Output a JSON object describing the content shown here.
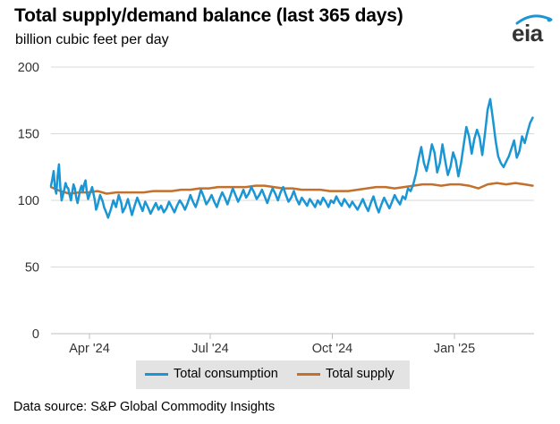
{
  "header": {
    "title": "Total supply/demand balance (last 365 days)",
    "subtitle": "billion cubic feet per day",
    "logo_text": "eia"
  },
  "footer": {
    "source": "Data source: S&P Global Commodity Insights"
  },
  "colors": {
    "consumption": "#1a96d4",
    "supply": "#c2702c",
    "grid": "#d9d9d9",
    "legend_bg": "#e3e3e3"
  },
  "chart_data": {
    "type": "line",
    "title": "Total supply/demand balance (last 365 days)",
    "ylabel": "billion cubic feet per day",
    "xlabel": "",
    "ylim": [
      0,
      200
    ],
    "yticks": [
      0,
      50,
      100,
      150,
      200
    ],
    "xlim": [
      "2024-03-03",
      "2025-03-02"
    ],
    "xticks": [
      {
        "date": "2024-04-01",
        "label": "Apr '24"
      },
      {
        "date": "2024-07-01",
        "label": "Jul '24"
      },
      {
        "date": "2024-10-01",
        "label": "Oct '24"
      },
      {
        "date": "2025-01-01",
        "label": "Jan '25"
      }
    ],
    "grid": true,
    "legend_position": "bottom",
    "series": [
      {
        "name": "Total consumption",
        "points": [
          [
            "2024-03-03",
            111
          ],
          [
            "2024-03-04",
            116
          ],
          [
            "2024-03-05",
            122
          ],
          [
            "2024-03-06",
            109
          ],
          [
            "2024-03-07",
            105
          ],
          [
            "2024-03-08",
            118
          ],
          [
            "2024-03-09",
            127
          ],
          [
            "2024-03-10",
            110
          ],
          [
            "2024-03-11",
            100
          ],
          [
            "2024-03-12",
            104
          ],
          [
            "2024-03-13",
            108
          ],
          [
            "2024-03-14",
            113
          ],
          [
            "2024-03-15",
            110
          ],
          [
            "2024-03-16",
            109
          ],
          [
            "2024-03-17",
            104
          ],
          [
            "2024-03-18",
            100
          ],
          [
            "2024-03-19",
            106
          ],
          [
            "2024-03-20",
            112
          ],
          [
            "2024-03-21",
            109
          ],
          [
            "2024-03-22",
            102
          ],
          [
            "2024-03-23",
            98
          ],
          [
            "2024-03-24",
            103
          ],
          [
            "2024-03-25",
            108
          ],
          [
            "2024-03-26",
            111
          ],
          [
            "2024-03-27",
            107
          ],
          [
            "2024-03-28",
            112
          ],
          [
            "2024-03-29",
            115
          ],
          [
            "2024-03-30",
            106
          ],
          [
            "2024-03-31",
            101
          ],
          [
            "2024-04-01",
            104
          ],
          [
            "2024-04-03",
            110
          ],
          [
            "2024-04-05",
            100
          ],
          [
            "2024-04-06",
            93
          ],
          [
            "2024-04-07",
            96
          ],
          [
            "2024-04-09",
            104
          ],
          [
            "2024-04-11",
            99
          ],
          [
            "2024-04-12",
            95
          ],
          [
            "2024-04-14",
            90
          ],
          [
            "2024-04-15",
            87
          ],
          [
            "2024-04-17",
            93
          ],
          [
            "2024-04-19",
            100
          ],
          [
            "2024-04-21",
            95
          ],
          [
            "2024-04-23",
            104
          ],
          [
            "2024-04-25",
            98
          ],
          [
            "2024-04-26",
            91
          ],
          [
            "2024-04-28",
            95
          ],
          [
            "2024-04-30",
            101
          ],
          [
            "2024-05-02",
            93
          ],
          [
            "2024-05-03",
            89
          ],
          [
            "2024-05-05",
            96
          ],
          [
            "2024-05-07",
            102
          ],
          [
            "2024-05-09",
            97
          ],
          [
            "2024-05-11",
            92
          ],
          [
            "2024-05-13",
            99
          ],
          [
            "2024-05-15",
            95
          ],
          [
            "2024-05-17",
            90
          ],
          [
            "2024-05-19",
            94
          ],
          [
            "2024-05-21",
            98
          ],
          [
            "2024-05-23",
            93
          ],
          [
            "2024-05-25",
            96
          ],
          [
            "2024-05-27",
            91
          ],
          [
            "2024-05-29",
            94
          ],
          [
            "2024-05-31",
            99
          ],
          [
            "2024-06-02",
            95
          ],
          [
            "2024-06-04",
            91
          ],
          [
            "2024-06-06",
            96
          ],
          [
            "2024-06-08",
            100
          ],
          [
            "2024-06-10",
            97
          ],
          [
            "2024-06-12",
            93
          ],
          [
            "2024-06-14",
            98
          ],
          [
            "2024-06-16",
            104
          ],
          [
            "2024-06-18",
            99
          ],
          [
            "2024-06-20",
            95
          ],
          [
            "2024-06-22",
            101
          ],
          [
            "2024-06-24",
            108
          ],
          [
            "2024-06-26",
            103
          ],
          [
            "2024-06-28",
            97
          ],
          [
            "2024-06-30",
            100
          ],
          [
            "2024-07-02",
            104
          ],
          [
            "2024-07-04",
            99
          ],
          [
            "2024-07-06",
            95
          ],
          [
            "2024-07-08",
            101
          ],
          [
            "2024-07-10",
            106
          ],
          [
            "2024-07-12",
            102
          ],
          [
            "2024-07-14",
            97
          ],
          [
            "2024-07-16",
            103
          ],
          [
            "2024-07-18",
            109
          ],
          [
            "2024-07-20",
            104
          ],
          [
            "2024-07-22",
            99
          ],
          [
            "2024-07-24",
            103
          ],
          [
            "2024-07-26",
            108
          ],
          [
            "2024-07-28",
            102
          ],
          [
            "2024-07-30",
            105
          ],
          [
            "2024-08-01",
            110
          ],
          [
            "2024-08-03",
            106
          ],
          [
            "2024-08-05",
            101
          ],
          [
            "2024-08-07",
            104
          ],
          [
            "2024-08-09",
            108
          ],
          [
            "2024-08-11",
            103
          ],
          [
            "2024-08-13",
            98
          ],
          [
            "2024-08-15",
            104
          ],
          [
            "2024-08-17",
            109
          ],
          [
            "2024-08-19",
            105
          ],
          [
            "2024-08-21",
            100
          ],
          [
            "2024-08-23",
            106
          ],
          [
            "2024-08-25",
            110
          ],
          [
            "2024-08-27",
            104
          ],
          [
            "2024-08-29",
            99
          ],
          [
            "2024-08-31",
            102
          ],
          [
            "2024-09-02",
            107
          ],
          [
            "2024-09-04",
            101
          ],
          [
            "2024-09-06",
            97
          ],
          [
            "2024-09-08",
            102
          ],
          [
            "2024-09-10",
            99
          ],
          [
            "2024-09-12",
            96
          ],
          [
            "2024-09-14",
            101
          ],
          [
            "2024-09-16",
            98
          ],
          [
            "2024-09-18",
            95
          ],
          [
            "2024-09-20",
            100
          ],
          [
            "2024-09-22",
            97
          ],
          [
            "2024-09-24",
            102
          ],
          [
            "2024-09-26",
            99
          ],
          [
            "2024-09-28",
            95
          ],
          [
            "2024-09-30",
            100
          ],
          [
            "2024-10-02",
            98
          ],
          [
            "2024-10-04",
            103
          ],
          [
            "2024-10-06",
            99
          ],
          [
            "2024-10-08",
            96
          ],
          [
            "2024-10-10",
            101
          ],
          [
            "2024-10-12",
            98
          ],
          [
            "2024-10-14",
            95
          ],
          [
            "2024-10-16",
            99
          ],
          [
            "2024-10-18",
            96
          ],
          [
            "2024-10-20",
            93
          ],
          [
            "2024-10-22",
            97
          ],
          [
            "2024-10-24",
            101
          ],
          [
            "2024-10-26",
            96
          ],
          [
            "2024-10-28",
            92
          ],
          [
            "2024-10-30",
            98
          ],
          [
            "2024-11-01",
            103
          ],
          [
            "2024-11-03",
            96
          ],
          [
            "2024-11-05",
            91
          ],
          [
            "2024-11-07",
            97
          ],
          [
            "2024-11-09",
            102
          ],
          [
            "2024-11-11",
            98
          ],
          [
            "2024-11-13",
            94
          ],
          [
            "2024-11-15",
            99
          ],
          [
            "2024-11-17",
            104
          ],
          [
            "2024-11-19",
            100
          ],
          [
            "2024-11-21",
            97
          ],
          [
            "2024-11-23",
            103
          ],
          [
            "2024-11-25",
            101
          ],
          [
            "2024-11-27",
            109
          ],
          [
            "2024-11-29",
            107
          ],
          [
            "2024-12-01",
            112
          ],
          [
            "2024-12-03",
            120
          ],
          [
            "2024-12-05",
            131
          ],
          [
            "2024-12-07",
            140
          ],
          [
            "2024-12-09",
            128
          ],
          [
            "2024-12-11",
            122
          ],
          [
            "2024-12-13",
            131
          ],
          [
            "2024-12-15",
            142
          ],
          [
            "2024-12-17",
            136
          ],
          [
            "2024-12-19",
            121
          ],
          [
            "2024-12-21",
            128
          ],
          [
            "2024-12-23",
            142
          ],
          [
            "2024-12-25",
            130
          ],
          [
            "2024-12-27",
            119
          ],
          [
            "2024-12-29",
            125
          ],
          [
            "2024-12-31",
            136
          ],
          [
            "2025-01-02",
            130
          ],
          [
            "2025-01-04",
            118
          ],
          [
            "2025-01-06",
            128
          ],
          [
            "2025-01-08",
            142
          ],
          [
            "2025-01-10",
            155
          ],
          [
            "2025-01-12",
            148
          ],
          [
            "2025-01-14",
            135
          ],
          [
            "2025-01-16",
            146
          ],
          [
            "2025-01-18",
            153
          ],
          [
            "2025-01-20",
            147
          ],
          [
            "2025-01-22",
            134
          ],
          [
            "2025-01-24",
            150
          ],
          [
            "2025-01-26",
            168
          ],
          [
            "2025-01-28",
            176
          ],
          [
            "2025-01-30",
            161
          ],
          [
            "2025-02-01",
            145
          ],
          [
            "2025-02-03",
            133
          ],
          [
            "2025-02-05",
            128
          ],
          [
            "2025-02-07",
            125
          ],
          [
            "2025-02-09",
            129
          ],
          [
            "2025-02-11",
            133
          ],
          [
            "2025-02-13",
            139
          ],
          [
            "2025-02-15",
            145
          ],
          [
            "2025-02-17",
            132
          ],
          [
            "2025-02-19",
            137
          ],
          [
            "2025-02-21",
            148
          ],
          [
            "2025-02-23",
            143
          ],
          [
            "2025-02-25",
            151
          ],
          [
            "2025-02-27",
            158
          ],
          [
            "2025-03-01",
            162
          ]
        ]
      },
      {
        "name": "Total supply",
        "points": [
          [
            "2024-03-03",
            110
          ],
          [
            "2024-03-10",
            107
          ],
          [
            "2024-03-17",
            105
          ],
          [
            "2024-03-24",
            106
          ],
          [
            "2024-03-31",
            106
          ],
          [
            "2024-04-07",
            107
          ],
          [
            "2024-04-14",
            105
          ],
          [
            "2024-04-21",
            106
          ],
          [
            "2024-04-28",
            106
          ],
          [
            "2024-05-05",
            106
          ],
          [
            "2024-05-12",
            106
          ],
          [
            "2024-05-19",
            107
          ],
          [
            "2024-05-26",
            107
          ],
          [
            "2024-06-02",
            107
          ],
          [
            "2024-06-09",
            108
          ],
          [
            "2024-06-16",
            108
          ],
          [
            "2024-06-23",
            109
          ],
          [
            "2024-06-30",
            109
          ],
          [
            "2024-07-07",
            110
          ],
          [
            "2024-07-14",
            110
          ],
          [
            "2024-07-21",
            110
          ],
          [
            "2024-07-28",
            110
          ],
          [
            "2024-08-04",
            111
          ],
          [
            "2024-08-11",
            111
          ],
          [
            "2024-08-18",
            110
          ],
          [
            "2024-08-25",
            109
          ],
          [
            "2024-09-01",
            109
          ],
          [
            "2024-09-08",
            108
          ],
          [
            "2024-09-15",
            108
          ],
          [
            "2024-09-22",
            108
          ],
          [
            "2024-09-29",
            107
          ],
          [
            "2024-10-06",
            107
          ],
          [
            "2024-10-13",
            107
          ],
          [
            "2024-10-20",
            108
          ],
          [
            "2024-10-27",
            109
          ],
          [
            "2024-11-03",
            110
          ],
          [
            "2024-11-10",
            110
          ],
          [
            "2024-11-17",
            109
          ],
          [
            "2024-11-24",
            110
          ],
          [
            "2024-12-01",
            111
          ],
          [
            "2024-12-08",
            112
          ],
          [
            "2024-12-15",
            112
          ],
          [
            "2024-12-22",
            111
          ],
          [
            "2024-12-29",
            112
          ],
          [
            "2025-01-05",
            112
          ],
          [
            "2025-01-12",
            111
          ],
          [
            "2025-01-19",
            109
          ],
          [
            "2025-01-26",
            112
          ],
          [
            "2025-02-02",
            113
          ],
          [
            "2025-02-09",
            112
          ],
          [
            "2025-02-16",
            113
          ],
          [
            "2025-02-23",
            112
          ],
          [
            "2025-03-01",
            111
          ]
        ]
      }
    ]
  }
}
